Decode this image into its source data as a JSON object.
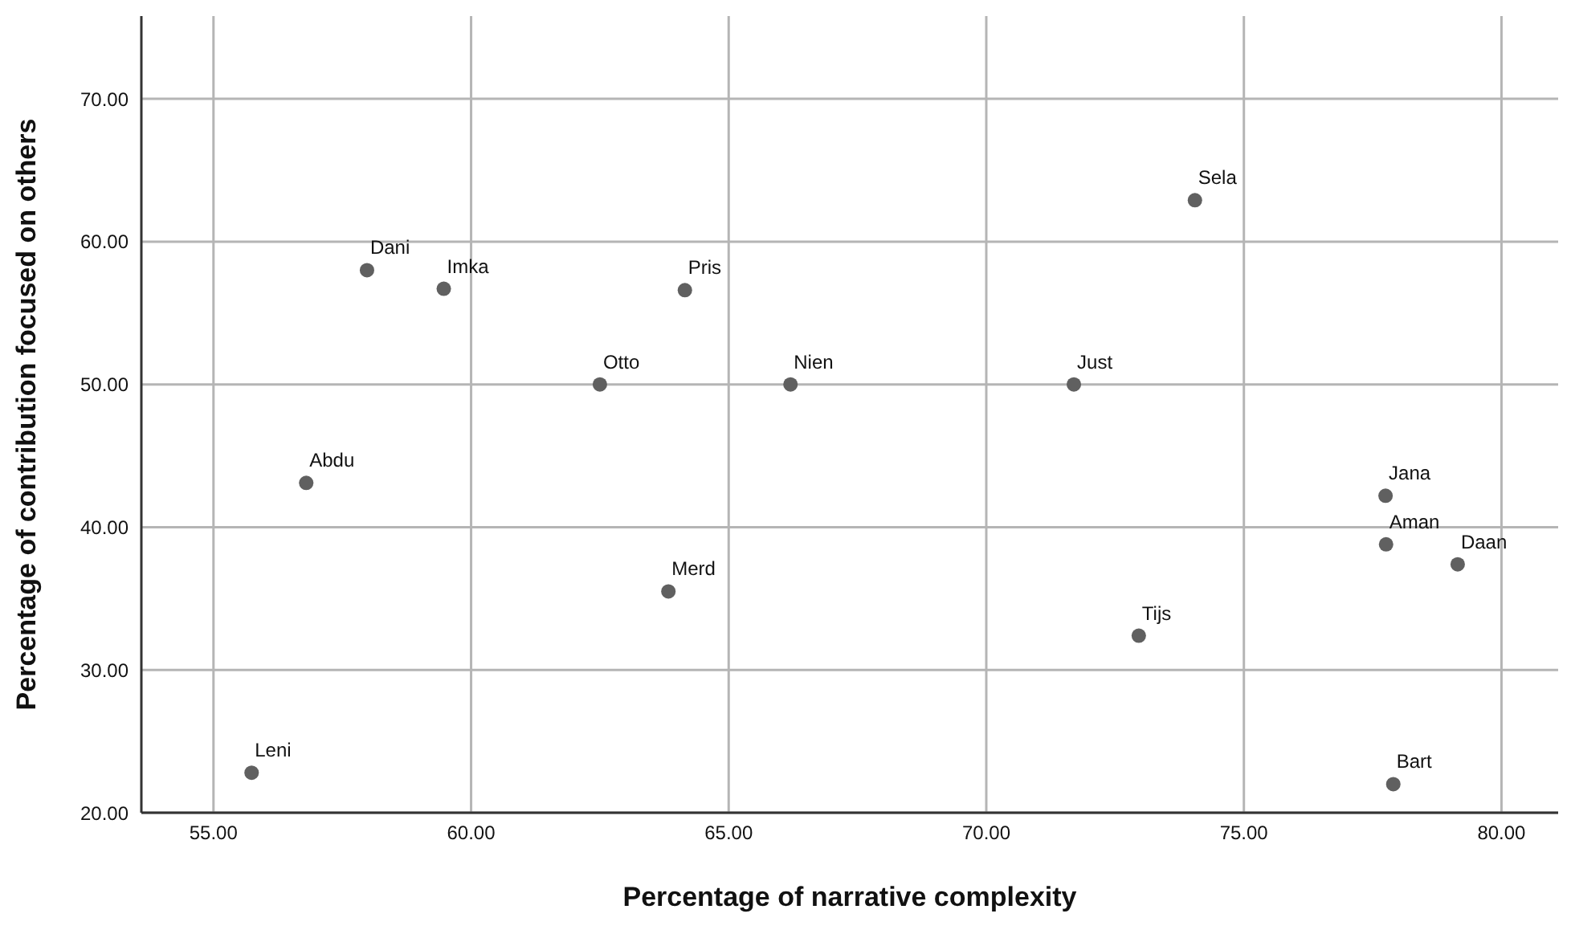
{
  "chart_data": {
    "type": "scatter",
    "xlabel": "Percentage of narrative complexity",
    "ylabel": "Percentage of contribution focused on others",
    "x": [
      57.98,
      59.47,
      64.15,
      62.5,
      66.2,
      56.8,
      63.83,
      74.05,
      71.7,
      77.75,
      77.76,
      79.15,
      72.96,
      55.74,
      77.9
    ],
    "series": [
      {
        "color": "#606060",
        "values": [
          58.0,
          56.7,
          56.6,
          50.0,
          50.0,
          43.1,
          35.5,
          62.9,
          50.0,
          42.2,
          38.8,
          37.4,
          32.4,
          22.8,
          22.0
        ]
      }
    ],
    "xlim": [
      53.6,
      81.1
    ],
    "xticks": [
      {
        "value": 55,
        "label": "55.00"
      },
      {
        "value": 60,
        "label": "60.00"
      },
      {
        "value": 65,
        "label": "65.00"
      },
      {
        "value": 70,
        "label": "70.00"
      },
      {
        "value": 75,
        "label": "75.00"
      },
      {
        "value": 80,
        "label": "80.00"
      }
    ],
    "ylim": [
      20,
      75.8
    ],
    "yticks": [
      {
        "value": 20,
        "label": "20.00"
      },
      {
        "value": 30,
        "label": "30.00"
      },
      {
        "value": 40,
        "label": "40.00"
      },
      {
        "value": 50,
        "label": "50.00"
      },
      {
        "value": 60,
        "label": "60.00"
      },
      {
        "value": 70,
        "label": "70.00"
      }
    ],
    "grid": true,
    "marker": "circle",
    "annotations": [
      {
        "text": "Dani",
        "x": 57.98,
        "y": 58.0
      },
      {
        "text": "Imka",
        "x": 59.47,
        "y": 56.7
      },
      {
        "text": "Pris",
        "x": 64.15,
        "y": 56.6
      },
      {
        "text": "Otto",
        "x": 62.5,
        "y": 50.0
      },
      {
        "text": "Nien",
        "x": 66.2,
        "y": 50.0
      },
      {
        "text": "Abdu",
        "x": 56.8,
        "y": 43.1
      },
      {
        "text": "Merd",
        "x": 63.83,
        "y": 35.5
      },
      {
        "text": "Sela",
        "x": 74.05,
        "y": 62.9
      },
      {
        "text": "Just",
        "x": 71.7,
        "y": 50.0
      },
      {
        "text": "Jana",
        "x": 77.75,
        "y": 42.2
      },
      {
        "text": "Aman",
        "x": 77.76,
        "y": 38.8
      },
      {
        "text": "Daan",
        "x": 79.15,
        "y": 37.4
      },
      {
        "text": "Tijs",
        "x": 72.96,
        "y": 32.4
      },
      {
        "text": "Leni",
        "x": 55.74,
        "y": 22.8
      },
      {
        "text": "Bart",
        "x": 77.9,
        "y": 22.0
      }
    ]
  }
}
